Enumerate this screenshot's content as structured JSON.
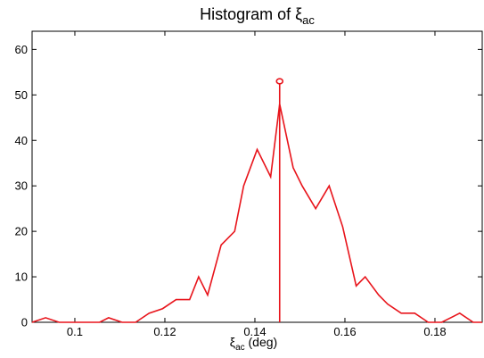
{
  "chart_data": {
    "type": "line",
    "title": {
      "main": "Histogram of ξ",
      "sub": "ac"
    },
    "xlabel": {
      "main": "ξ",
      "sub": "ac",
      "rest": " (deg)"
    },
    "ylabel": "",
    "xlim": [
      0.0905,
      0.1905
    ],
    "ylim": [
      0,
      64
    ],
    "x_ticks": [
      0.1,
      0.12,
      0.14,
      0.16,
      0.18
    ],
    "x_tick_labels": [
      "0.1",
      "0.12",
      "0.14",
      "0.16",
      "0.18"
    ],
    "y_ticks": [
      0,
      10,
      20,
      30,
      40,
      50,
      60
    ],
    "y_tick_labels": [
      "0",
      "10",
      "20",
      "30",
      "40",
      "50",
      "60"
    ],
    "grid": false,
    "series": [
      {
        "color": "#e8141b",
        "x": [
          0.0905,
          0.0935,
          0.0965,
          0.0995,
          0.1025,
          0.1055,
          0.1075,
          0.1105,
          0.1135,
          0.1165,
          0.1195,
          0.1225,
          0.1255,
          0.1275,
          0.1295,
          0.1325,
          0.1355,
          0.1375,
          0.1405,
          0.1435,
          0.1455,
          0.1485,
          0.1505,
          0.1535,
          0.1565,
          0.1595,
          0.1625,
          0.1645,
          0.1675,
          0.1695,
          0.1725,
          0.1755,
          0.1785,
          0.1815,
          0.1855,
          0.1885,
          0.1905
        ],
        "y": [
          0,
          1,
          0,
          0,
          0,
          0,
          1,
          0,
          0,
          2,
          3,
          5,
          5,
          10,
          6,
          17,
          20,
          30,
          38,
          32,
          48,
          34,
          30,
          25,
          30,
          21,
          8,
          10,
          6,
          4,
          2,
          2,
          0,
          0,
          2,
          0,
          0
        ]
      }
    ],
    "marker": {
      "x": 0.1455,
      "y": 53,
      "shape": "circle",
      "stem": true,
      "color": "#e8141b"
    }
  }
}
